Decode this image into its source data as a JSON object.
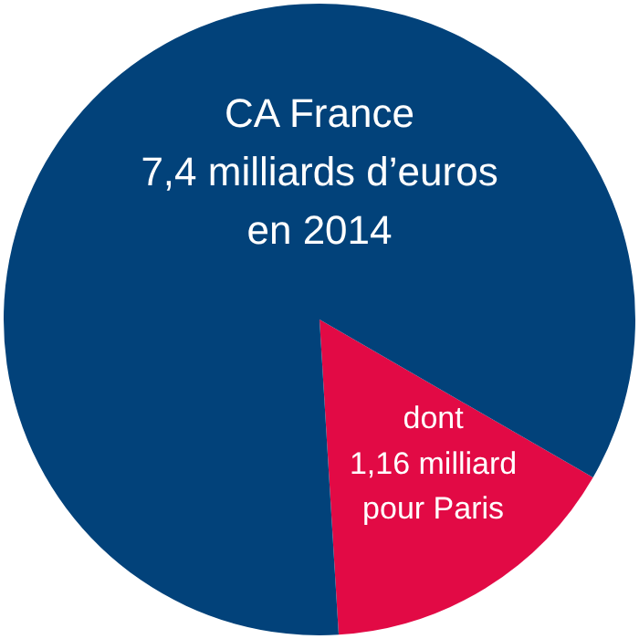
{
  "chart_data": {
    "type": "pie",
    "categories": [
      "dont\n1,16 milliard\npour Paris",
      "CA France\n7,4 milliards d’euros\nen 2014"
    ],
    "values": [
      15.7,
      84.3
    ],
    "colors": [
      "#e20a45",
      "#02427a"
    ],
    "legend": false
  }
}
